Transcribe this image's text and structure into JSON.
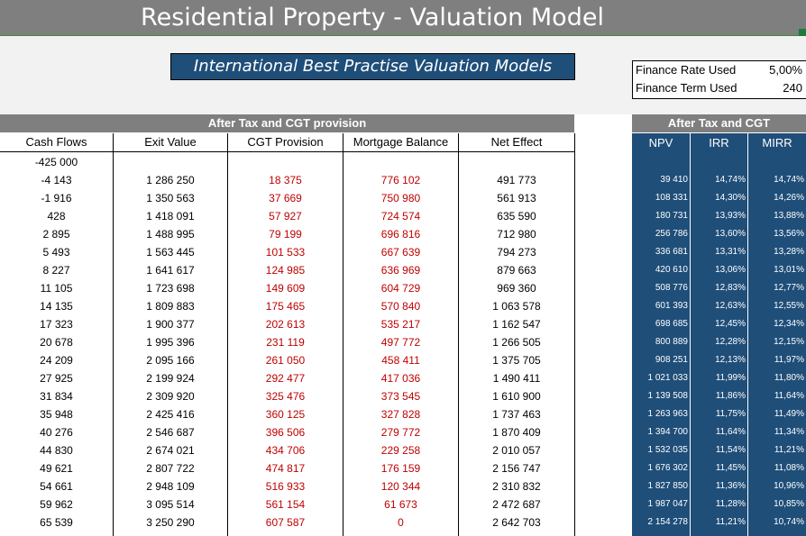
{
  "title": "Residential Property - Valuation Model",
  "banner": "International Best Practise Valuation Models",
  "finance": {
    "rate_label": "Finance Rate Used",
    "rate_value": "5,00%",
    "term_label": "Finance Term Used",
    "term_value": "240"
  },
  "left_table": {
    "header": "After Tax and CGT provision",
    "columns": [
      "Cash Flows",
      "Exit Value",
      "CGT Provision",
      "Mortgage Balance",
      "Net Effect"
    ],
    "rows": [
      [
        "-425 000",
        "",
        "",
        "",
        ""
      ],
      [
        "-4 143",
        "1 286 250",
        "18 375",
        "776 102",
        "491 773"
      ],
      [
        "-1 916",
        "1 350 563",
        "37 669",
        "750 980",
        "561 913"
      ],
      [
        "428",
        "1 418 091",
        "57 927",
        "724 574",
        "635 590"
      ],
      [
        "2 895",
        "1 488 995",
        "79 199",
        "696 816",
        "712 980"
      ],
      [
        "5 493",
        "1 563 445",
        "101 533",
        "667 639",
        "794 273"
      ],
      [
        "8 227",
        "1 641 617",
        "124 985",
        "636 969",
        "879 663"
      ],
      [
        "11 105",
        "1 723 698",
        "149 609",
        "604 729",
        "969 360"
      ],
      [
        "14 135",
        "1 809 883",
        "175 465",
        "570 840",
        "1 063 578"
      ],
      [
        "17 323",
        "1 900 377",
        "202 613",
        "535 217",
        "1 162 547"
      ],
      [
        "20 678",
        "1 995 396",
        "231 119",
        "497 772",
        "1 266 505"
      ],
      [
        "24 209",
        "2 095 166",
        "261 050",
        "458 411",
        "1 375 705"
      ],
      [
        "27 925",
        "2 199 924",
        "292 477",
        "417 036",
        "1 490 411"
      ],
      [
        "31 834",
        "2 309 920",
        "325 476",
        "373 545",
        "1 610 900"
      ],
      [
        "35 948",
        "2 425 416",
        "360 125",
        "327 828",
        "1 737 463"
      ],
      [
        "40 276",
        "2 546 687",
        "396 506",
        "279 772",
        "1 870 409"
      ],
      [
        "44 830",
        "2 674 021",
        "434 706",
        "229 258",
        "2 010 057"
      ],
      [
        "49 621",
        "2 807 722",
        "474 817",
        "176 159",
        "2 156 747"
      ],
      [
        "54 661",
        "2 948 109",
        "516 933",
        "120 344",
        "2 310 832"
      ],
      [
        "59 962",
        "3 095 514",
        "561 154",
        "61 673",
        "2 472 687"
      ],
      [
        "65 539",
        "3 250 290",
        "607 587",
        "0",
        "2 642 703"
      ]
    ]
  },
  "right_table": {
    "header": "After Tax and CGT",
    "columns": [
      "NPV",
      "IRR",
      "MIRR"
    ],
    "rows": [
      [
        "",
        "",
        ""
      ],
      [
        "39 410",
        "14,74%",
        "14,74%"
      ],
      [
        "108 331",
        "14,30%",
        "14,26%"
      ],
      [
        "180 731",
        "13,93%",
        "13,88%"
      ],
      [
        "256 786",
        "13,60%",
        "13,56%"
      ],
      [
        "336 681",
        "13,31%",
        "13,28%"
      ],
      [
        "420 610",
        "13,06%",
        "13,01%"
      ],
      [
        "508 776",
        "12,83%",
        "12,77%"
      ],
      [
        "601 393",
        "12,63%",
        "12,55%"
      ],
      [
        "698 685",
        "12,45%",
        "12,34%"
      ],
      [
        "800 889",
        "12,28%",
        "12,15%"
      ],
      [
        "908 251",
        "12,13%",
        "11,97%"
      ],
      [
        "1 021 033",
        "11,99%",
        "11,80%"
      ],
      [
        "1 139 508",
        "11,86%",
        "11,64%"
      ],
      [
        "1 263 963",
        "11,75%",
        "11,49%"
      ],
      [
        "1 394 700",
        "11,64%",
        "11,34%"
      ],
      [
        "1 532 035",
        "11,54%",
        "11,21%"
      ],
      [
        "1 676 302",
        "11,45%",
        "11,08%"
      ],
      [
        "1 827 850",
        "11,36%",
        "10,96%"
      ],
      [
        "1 987 047",
        "11,28%",
        "10,85%"
      ],
      [
        "2 154 278",
        "11,21%",
        "10,74%"
      ]
    ]
  }
}
